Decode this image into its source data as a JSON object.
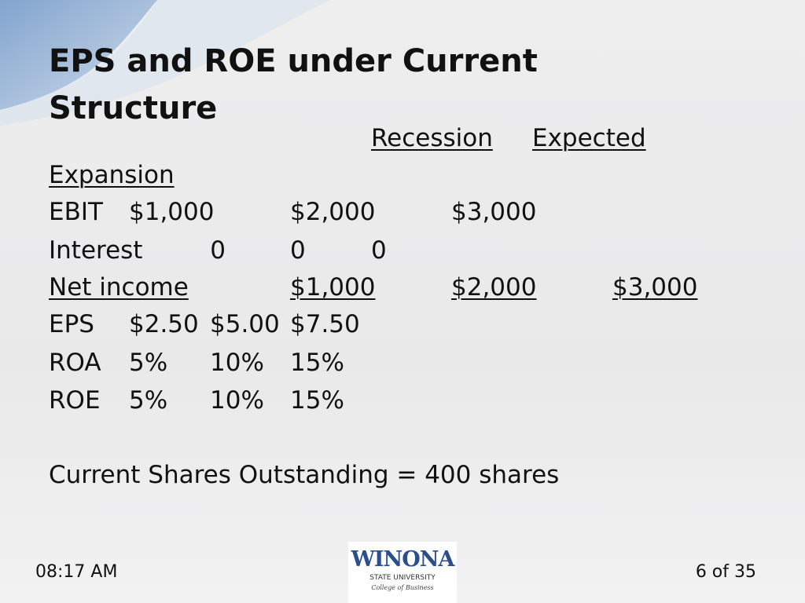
{
  "slide": {
    "title": "EPS and ROE under Current Structure",
    "header": [
      "Recession",
      "Expected",
      "Expansion"
    ],
    "rows": [
      [
        "EBIT",
        "$1,000",
        "$2,000",
        "$3,000"
      ],
      [
        "Interest",
        "0",
        "0",
        "0"
      ],
      [
        "Net income",
        "$1,000",
        "$2,000",
        "$3,000"
      ],
      [
        "EPS",
        "$2.50",
        "$5.00",
        "$7.50"
      ],
      [
        "ROA",
        "5%",
        "10%",
        "15%"
      ],
      [
        "ROE",
        "5%",
        "10%",
        "15%"
      ]
    ],
    "note": "Current Shares Outstanding = 400 shares"
  },
  "footer": {
    "time": "08:17 AM",
    "page": "6 of 35",
    "logo": {
      "name": "WINONA",
      "subtitle": "STATE UNIVERSITY",
      "college": "College of Business"
    }
  }
}
